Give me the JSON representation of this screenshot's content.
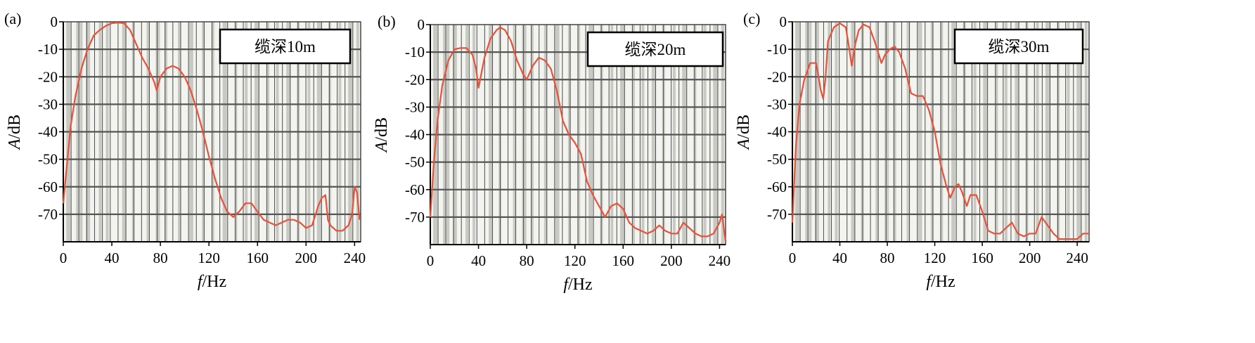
{
  "chart_data": [
    {
      "type": "line",
      "panel_label": "(a)",
      "legend_text": "缆深10m",
      "xlabel": {
        "var": "f",
        "unit": "/Hz"
      },
      "ylabel": {
        "var": "A",
        "unit": "/dB"
      },
      "xlim": [
        0,
        245
      ],
      "ylim": [
        -80,
        0
      ],
      "xticks": [
        0,
        40,
        80,
        120,
        160,
        200,
        240
      ],
      "yticks": [
        0,
        -10,
        -20,
        -30,
        -40,
        -50,
        -60,
        -70
      ],
      "grid": true,
      "series_color": "#e8513a",
      "x": [
        0,
        3,
        6,
        10,
        15,
        20,
        25,
        30,
        35,
        40,
        45,
        50,
        55,
        60,
        65,
        70,
        75,
        77,
        80,
        85,
        90,
        95,
        100,
        105,
        110,
        115,
        120,
        125,
        130,
        135,
        140,
        145,
        150,
        155,
        160,
        165,
        170,
        175,
        180,
        185,
        190,
        195,
        200,
        205,
        210,
        213,
        216,
        218,
        220,
        225,
        230,
        235,
        238,
        240,
        242,
        244
      ],
      "y": [
        -66,
        -52,
        -38,
        -27,
        -17,
        -10,
        -5,
        -3,
        -1.5,
        -0.5,
        -0.3,
        -0.5,
        -3,
        -8,
        -13,
        -17,
        -22,
        -25,
        -20,
        -17,
        -16,
        -17,
        -20,
        -25,
        -32,
        -40,
        -49,
        -57,
        -64,
        -69,
        -71,
        -69,
        -66,
        -66,
        -69,
        -72,
        -73,
        -74,
        -73,
        -72,
        -72,
        -73,
        -75,
        -74,
        -67,
        -64,
        -63,
        -72,
        -74,
        -76,
        -76,
        -74,
        -70,
        -60,
        -62,
        -72
      ]
    },
    {
      "type": "line",
      "panel_label": "(b)",
      "legend_text": "缆深20m",
      "xlabel": {
        "var": "f",
        "unit": "/Hz"
      },
      "ylabel": {
        "var": "A",
        "unit": "/dB"
      },
      "xlim": [
        0,
        245
      ],
      "ylim": [
        -80,
        0
      ],
      "xticks": [
        0,
        40,
        80,
        120,
        160,
        200,
        240
      ],
      "yticks": [
        0,
        -10,
        -20,
        -30,
        -40,
        -50,
        -60,
        -70
      ],
      "grid": true,
      "series_color": "#e8513a",
      "x": [
        0,
        3,
        6,
        10,
        15,
        20,
        25,
        30,
        35,
        38,
        40,
        45,
        50,
        55,
        58,
        62,
        67,
        72,
        77,
        80,
        85,
        90,
        95,
        100,
        105,
        110,
        115,
        120,
        125,
        130,
        135,
        140,
        145,
        150,
        155,
        160,
        165,
        170,
        175,
        180,
        185,
        190,
        195,
        200,
        205,
        210,
        215,
        220,
        225,
        230,
        235,
        240,
        242,
        245
      ],
      "y": [
        -70,
        -50,
        -35,
        -22,
        -13,
        -9,
        -8.5,
        -8.5,
        -11,
        -16,
        -23,
        -12,
        -5,
        -2,
        -1,
        -2,
        -6,
        -13,
        -18,
        -20,
        -15,
        -12,
        -13,
        -16,
        -24,
        -35,
        -40,
        -43,
        -47,
        -57,
        -62,
        -66,
        -70,
        -66,
        -65,
        -67,
        -72,
        -74,
        -75,
        -76,
        -75,
        -73,
        -75,
        -76,
        -76,
        -72,
        -74,
        -76,
        -77,
        -77,
        -76,
        -72,
        -69,
        -79
      ]
    },
    {
      "type": "line",
      "panel_label": "(c)",
      "legend_text": "缆深30m",
      "xlabel": {
        "var": "f",
        "unit": "/Hz"
      },
      "ylabel": {
        "var": "A",
        "unit": "/dB"
      },
      "xlim": [
        0,
        250
      ],
      "ylim": [
        -80,
        0
      ],
      "xticks": [
        0,
        40,
        80,
        120,
        160,
        200,
        240
      ],
      "yticks": [
        0,
        -10,
        -20,
        -30,
        -40,
        -50,
        -60,
        -70
      ],
      "grid": true,
      "series_color": "#e8513a",
      "x": [
        0,
        3,
        6,
        10,
        15,
        20,
        24,
        26,
        28,
        30,
        35,
        40,
        45,
        48,
        50,
        53,
        56,
        60,
        65,
        70,
        75,
        78,
        82,
        86,
        90,
        95,
        100,
        105,
        110,
        115,
        120,
        125,
        130,
        133,
        137,
        140,
        143,
        147,
        150,
        155,
        160,
        165,
        170,
        175,
        180,
        185,
        190,
        195,
        200,
        205,
        210,
        215,
        220,
        225,
        230,
        235,
        240,
        245,
        250
      ],
      "y": [
        -73,
        -45,
        -30,
        -21,
        -15,
        -15,
        -25,
        -28,
        -20,
        -7,
        -2,
        -0.5,
        -2,
        -10,
        -16,
        -8,
        -3,
        -1,
        -2,
        -8,
        -15,
        -12,
        -10,
        -9,
        -11,
        -17,
        -26,
        -27,
        -27,
        -32,
        -40,
        -52,
        -60,
        -64,
        -60,
        -59,
        -62,
        -67,
        -63,
        -63,
        -69,
        -76,
        -77,
        -77,
        -75,
        -73,
        -77,
        -78,
        -77,
        -77,
        -71,
        -74,
        -77,
        -79,
        -79,
        -79,
        -79,
        -77,
        -77
      ]
    }
  ]
}
